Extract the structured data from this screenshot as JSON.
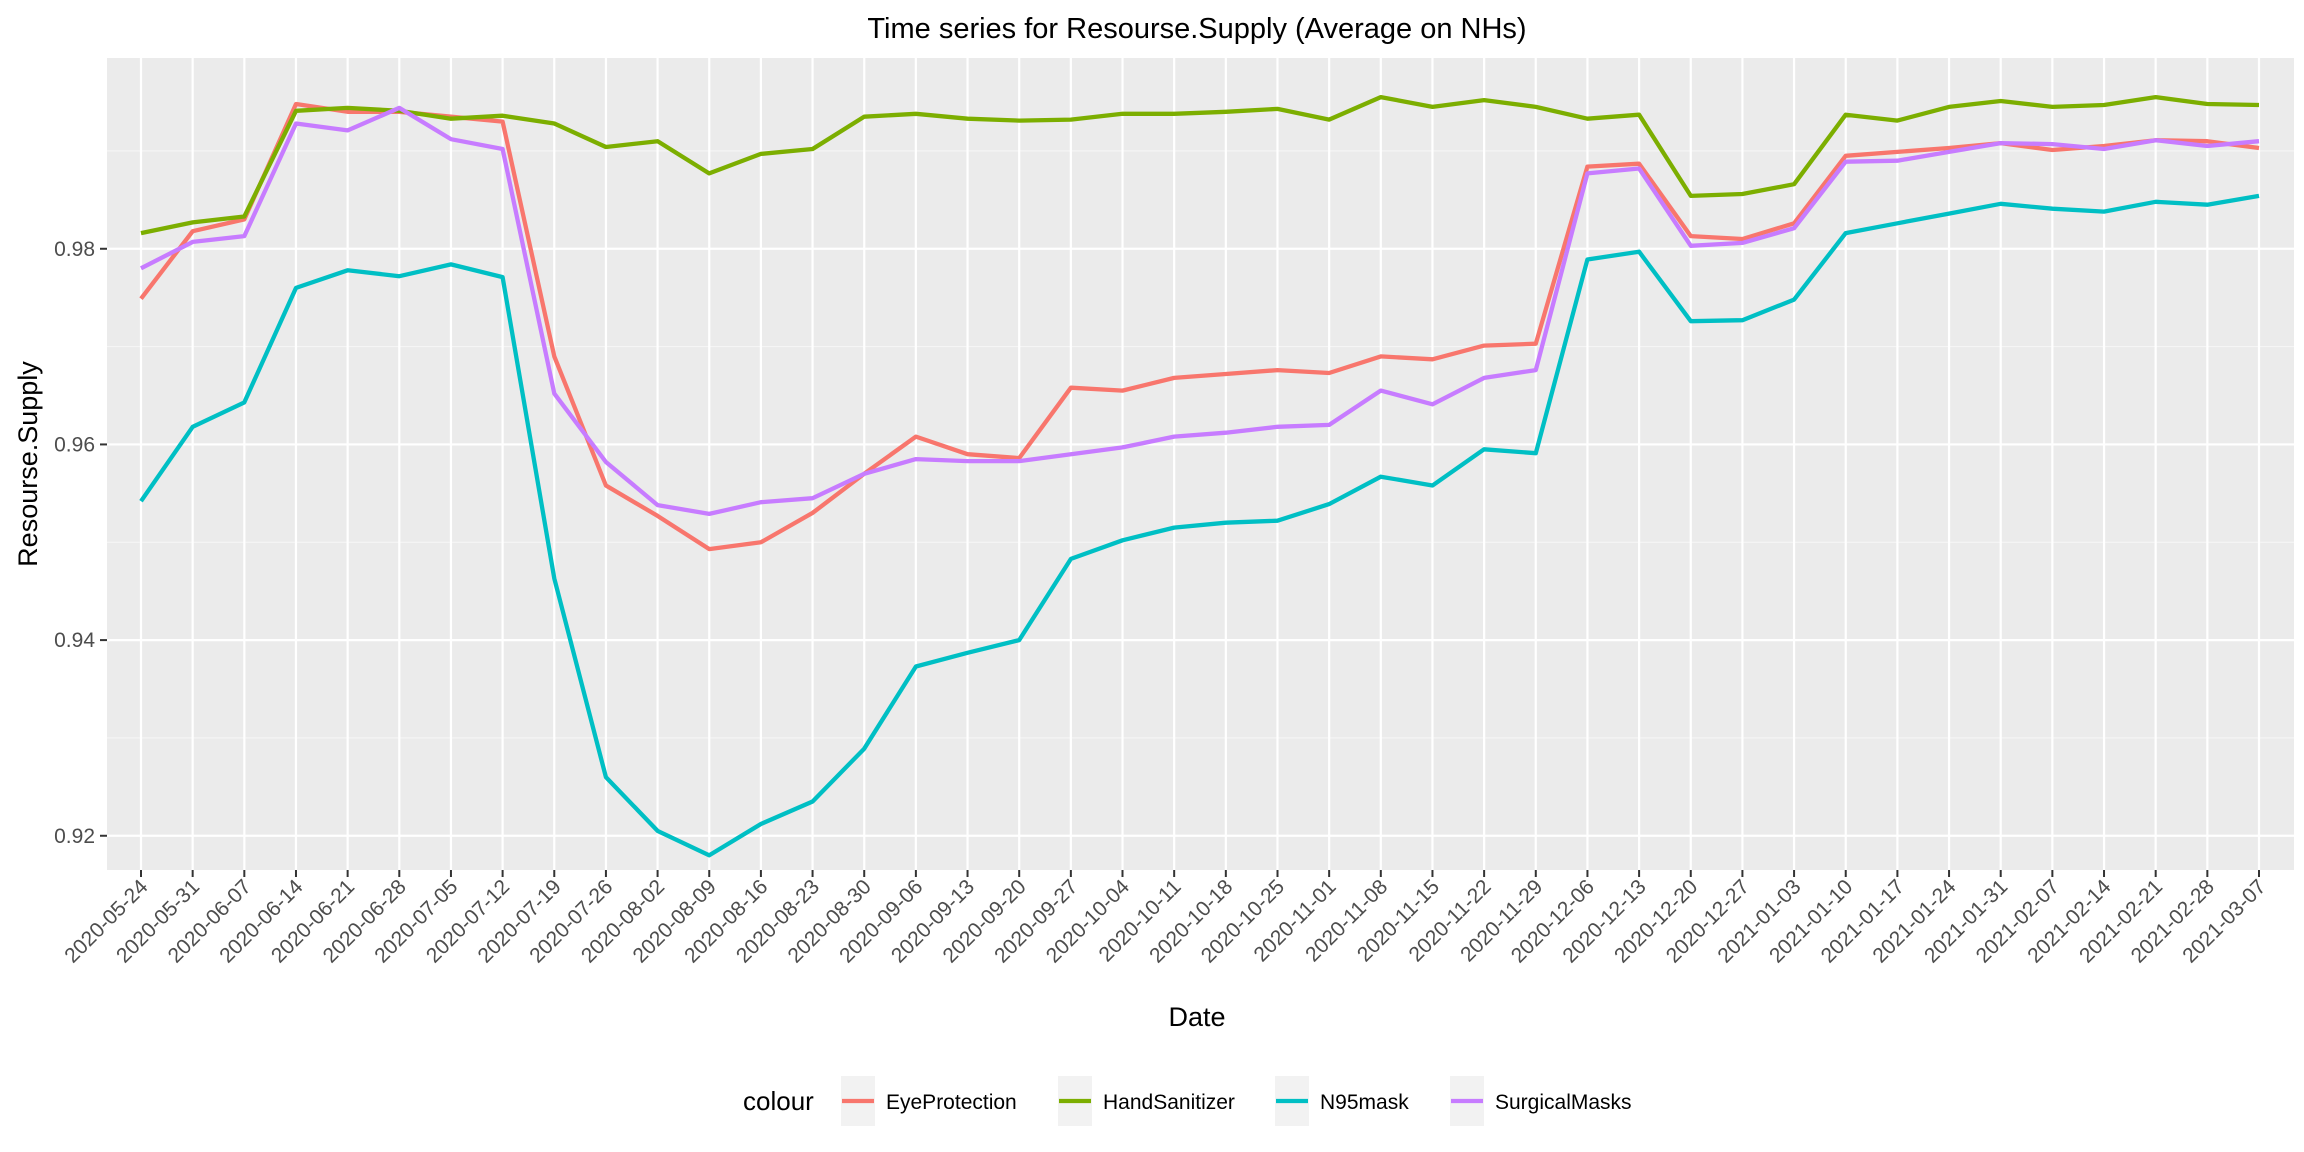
{
  "chart_data": {
    "type": "line",
    "title": "Time series for Resourse.Supply (Average on NHs)",
    "xlabel": "Date",
    "ylabel": "Resourse.Supply",
    "ylim": [
      0.9165,
      0.9995
    ],
    "yticks": [
      0.92,
      0.94,
      0.96,
      0.98
    ],
    "ytick_labels": [
      "0.92",
      "0.94",
      "0.96",
      "0.98"
    ],
    "grid": true,
    "legend": {
      "title": "colour",
      "position": "bottom"
    },
    "x": [
      "2020-05-24",
      "2020-05-31",
      "2020-06-07",
      "2020-06-14",
      "2020-06-21",
      "2020-06-28",
      "2020-07-05",
      "2020-07-12",
      "2020-07-19",
      "2020-07-26",
      "2020-08-02",
      "2020-08-09",
      "2020-08-16",
      "2020-08-23",
      "2020-08-30",
      "2020-09-06",
      "2020-09-13",
      "2020-09-20",
      "2020-09-27",
      "2020-10-04",
      "2020-10-11",
      "2020-10-18",
      "2020-10-25",
      "2020-11-01",
      "2020-11-08",
      "2020-11-15",
      "2020-11-22",
      "2020-11-29",
      "2020-12-06",
      "2020-12-13",
      "2020-12-20",
      "2020-12-27",
      "2021-01-03",
      "2021-01-10",
      "2021-01-17",
      "2021-01-24",
      "2021-01-31",
      "2021-02-07",
      "2021-02-14",
      "2021-02-21",
      "2021-02-28",
      "2021-03-07"
    ],
    "series": [
      {
        "name": "EyeProtection",
        "color": "#F8766D",
        "values": [
          0.9749,
          0.9818,
          0.983,
          0.9948,
          0.994,
          0.994,
          0.9935,
          0.993,
          0.969,
          0.9558,
          0.9527,
          0.9493,
          0.95,
          0.953,
          0.957,
          0.9608,
          0.959,
          0.9586,
          0.9658,
          0.9655,
          0.9668,
          0.9672,
          0.9676,
          0.9673,
          0.969,
          0.9687,
          0.9701,
          0.9703,
          0.9884,
          0.9887,
          0.9813,
          0.981,
          0.9826,
          0.9895,
          0.9899,
          0.9903,
          0.9908,
          0.9901,
          0.9905,
          0.9911,
          0.991,
          0.9903
        ]
      },
      {
        "name": "HandSanitizer",
        "color": "#7CAE00",
        "values": [
          0.9816,
          0.9827,
          0.9833,
          0.9941,
          0.9944,
          0.9941,
          0.9933,
          0.9936,
          0.9928,
          0.9904,
          0.991,
          0.9877,
          0.9897,
          0.9902,
          0.9935,
          0.9938,
          0.9933,
          0.9931,
          0.9932,
          0.9938,
          0.9938,
          0.994,
          0.9943,
          0.9932,
          0.9955,
          0.9945,
          0.9952,
          0.9945,
          0.9933,
          0.9937,
          0.9854,
          0.9856,
          0.9866,
          0.9937,
          0.9931,
          0.9945,
          0.9951,
          0.9945,
          0.9947,
          0.9955,
          0.9948,
          0.9947
        ]
      },
      {
        "name": "N95mask",
        "color": "#00BFC4",
        "values": [
          0.9542,
          0.9618,
          0.9643,
          0.976,
          0.9778,
          0.9772,
          0.9784,
          0.9771,
          0.9463,
          0.926,
          0.9205,
          0.918,
          0.9212,
          0.9235,
          0.9289,
          0.9373,
          0.9387,
          0.94,
          0.9483,
          0.9502,
          0.9515,
          0.952,
          0.9522,
          0.9539,
          0.9567,
          0.9558,
          0.9595,
          0.9591,
          0.9789,
          0.9797,
          0.9726,
          0.9727,
          0.9748,
          0.9816,
          0.9826,
          0.9836,
          0.9846,
          0.9841,
          0.9838,
          0.9848,
          0.9845,
          0.9854
        ]
      },
      {
        "name": "SurgicalMasks",
        "color": "#C77CFF",
        "values": [
          0.978,
          0.9807,
          0.9813,
          0.9928,
          0.9921,
          0.9944,
          0.9912,
          0.9902,
          0.9652,
          0.9582,
          0.9538,
          0.9529,
          0.9541,
          0.9545,
          0.957,
          0.9585,
          0.9583,
          0.9583,
          0.959,
          0.9597,
          0.9608,
          0.9612,
          0.9618,
          0.962,
          0.9655,
          0.9641,
          0.9668,
          0.9676,
          0.9877,
          0.9882,
          0.9803,
          0.9806,
          0.9821,
          0.9889,
          0.989,
          0.9899,
          0.9908,
          0.9907,
          0.9902,
          0.9911,
          0.9905,
          0.991
        ]
      }
    ]
  }
}
